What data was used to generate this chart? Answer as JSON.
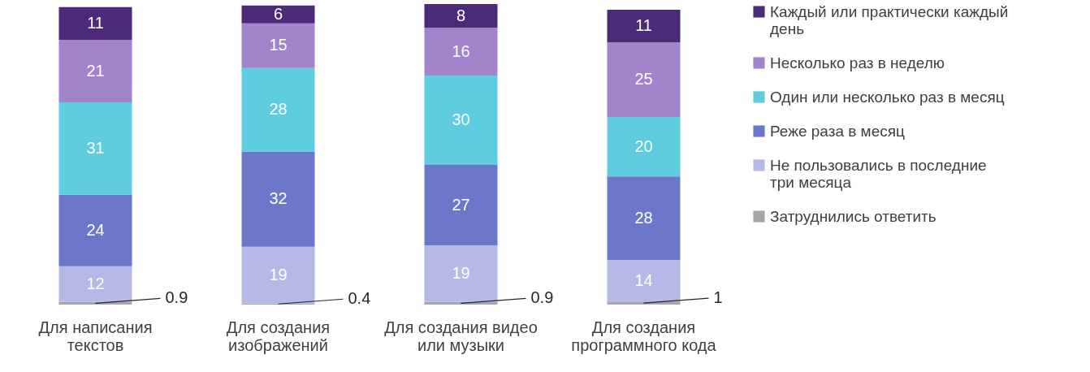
{
  "chart_data": {
    "type": "bar",
    "stacked": true,
    "data_labels": true,
    "legend": "right",
    "categories": [
      "Для написания текстов",
      "Для создания изображений",
      "Для создания видео или музыки",
      "Для создания программного кода"
    ],
    "series": [
      {
        "name": "Затруднились ответить",
        "color": "#a6a6a6",
        "values": [
          0.9,
          0.4,
          0.9,
          1
        ]
      },
      {
        "name": "Не пользовались в последние три месяца",
        "color": "#b4b9e6",
        "values": [
          12,
          19,
          19,
          14
        ]
      },
      {
        "name": "Реже раза в месяц",
        "color": "#6b77c9",
        "values": [
          24,
          32,
          27,
          28
        ]
      },
      {
        "name": "Один или несколько раз в месяц",
        "color": "#5ecde0",
        "values": [
          31,
          28,
          30,
          20
        ]
      },
      {
        "name": "Несколько раз в неделю",
        "color": "#a184cb",
        "values": [
          21,
          15,
          16,
          25
        ]
      },
      {
        "name": "Каждый или практически каждый день",
        "color": "#4b2a78",
        "values": [
          11,
          6,
          8,
          11
        ]
      }
    ]
  }
}
